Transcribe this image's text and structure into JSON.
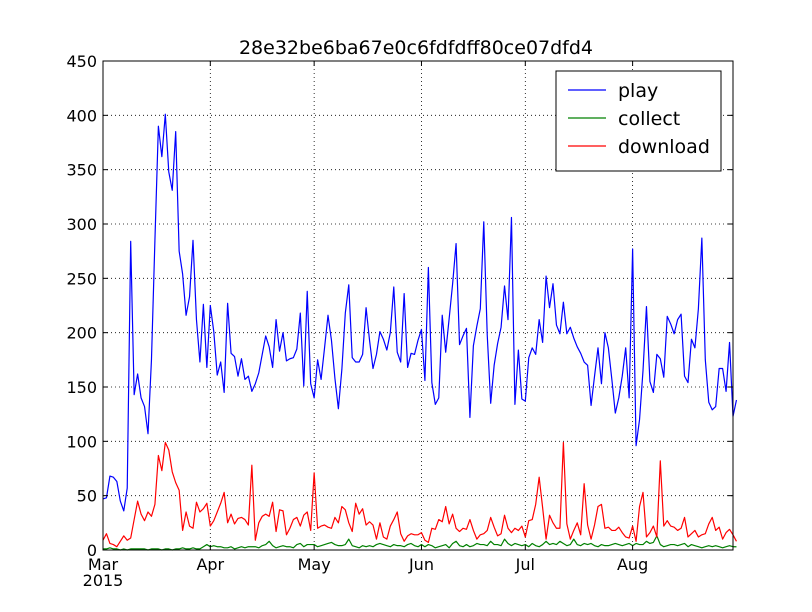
{
  "chart_data": {
    "type": "line",
    "title": "28e32be6ba67e0c6fdfdff80ce07dfd4",
    "xlabel": "",
    "ylabel": "",
    "x_start": "2015-03-01",
    "x_end": "2015-08-30",
    "xticks": [
      {
        "date": "2015-03-01",
        "label": "Mar",
        "sublabel": "2015"
      },
      {
        "date": "2015-04-01",
        "label": "Apr",
        "sublabel": ""
      },
      {
        "date": "2015-05-01",
        "label": "May",
        "sublabel": ""
      },
      {
        "date": "2015-06-01",
        "label": "Jun",
        "sublabel": ""
      },
      {
        "date": "2015-07-01",
        "label": "Jul",
        "sublabel": ""
      },
      {
        "date": "2015-08-01",
        "label": "Aug",
        "sublabel": ""
      }
    ],
    "ylim": [
      0,
      450
    ],
    "yticks": [
      0,
      50,
      100,
      150,
      200,
      250,
      300,
      350,
      400,
      450
    ],
    "grid": true,
    "legend_position": "upper-right",
    "series": [
      {
        "name": "play",
        "color": "#0000ff",
        "values": [
          47,
          48,
          68,
          67,
          63,
          45,
          36,
          57,
          284,
          143,
          162,
          140,
          132,
          107,
          175,
          285,
          390,
          362,
          401,
          348,
          331,
          385,
          275,
          254,
          216,
          233,
          285,
          212,
          173,
          226,
          168,
          225,
          201,
          161,
          173,
          145,
          227,
          181,
          178,
          160,
          176,
          157,
          160,
          146,
          153,
          163,
          180,
          197,
          187,
          168,
          212,
          183,
          200,
          174,
          176,
          177,
          185,
          218,
          151,
          238,
          153,
          140,
          175,
          157,
          186,
          216,
          193,
          158,
          130,
          166,
          218,
          244,
          177,
          173,
          173,
          180,
          223,
          193,
          167,
          180,
          201,
          194,
          184,
          200,
          242,
          182,
          173,
          236,
          168,
          181,
          180,
          193,
          203,
          156,
          260,
          154,
          134,
          140,
          216,
          182,
          213,
          245,
          282,
          189,
          197,
          204,
          122,
          188,
          206,
          222,
          302,
          198,
          135,
          170,
          190,
          205,
          243,
          212,
          306,
          134,
          184,
          139,
          137,
          177,
          186,
          180,
          212,
          191,
          252,
          223,
          245,
          207,
          199,
          228,
          199,
          205,
          195,
          187,
          181,
          173,
          170,
          133,
          160,
          186,
          153,
          200,
          186,
          157,
          126,
          140,
          160,
          186,
          140,
          277,
          96,
          120,
          165,
          224,
          155,
          145,
          180,
          176,
          159,
          215,
          208,
          199,
          212,
          217,
          160,
          154,
          194,
          186,
          222,
          287,
          175,
          136,
          129,
          132,
          167,
          167,
          146,
          191,
          123,
          138
        ]
      },
      {
        "name": "collect",
        "color": "#008000",
        "values": [
          1,
          1,
          2,
          1,
          1,
          0,
          1,
          0,
          1,
          1,
          1,
          1,
          1,
          0,
          1,
          1,
          1,
          0,
          1,
          1,
          0,
          1,
          1,
          2,
          1,
          1,
          2,
          1,
          1,
          3,
          5,
          3,
          4,
          3,
          3,
          2,
          2,
          3,
          1,
          2,
          3,
          2,
          3,
          3,
          3,
          2,
          4,
          5,
          8,
          4,
          2,
          3,
          4,
          3,
          3,
          2,
          5,
          6,
          3,
          5,
          5,
          5,
          3,
          4,
          5,
          6,
          7,
          5,
          4,
          4,
          5,
          10,
          4,
          3,
          2,
          4,
          3,
          4,
          3,
          5,
          6,
          5,
          4,
          3,
          5,
          4,
          4,
          3,
          5,
          6,
          4,
          3,
          5,
          3,
          5,
          4,
          2,
          3,
          4,
          5,
          2,
          6,
          8,
          4,
          3,
          5,
          3,
          4,
          6,
          5,
          5,
          4,
          8,
          5,
          5,
          4,
          10,
          6,
          4,
          6,
          5,
          4,
          5,
          3,
          6,
          4,
          3,
          5,
          8,
          5,
          6,
          5,
          8,
          6,
          4,
          5,
          10,
          5,
          4,
          6,
          5,
          6,
          4,
          3,
          5,
          4,
          4,
          5,
          6,
          5,
          4,
          5,
          6,
          4,
          6,
          5,
          5,
          8,
          6,
          7,
          13,
          5,
          3,
          4,
          5,
          5,
          4,
          5,
          6,
          3,
          5,
          4,
          3,
          2,
          3,
          4,
          3,
          4,
          3,
          2,
          3,
          4,
          3,
          3
        ]
      },
      {
        "name": "download",
        "color": "#ff0000",
        "values": [
          9,
          15,
          6,
          5,
          3,
          8,
          13,
          9,
          11,
          28,
          45,
          33,
          27,
          35,
          31,
          42,
          87,
          73,
          99,
          92,
          72,
          62,
          55,
          18,
          35,
          22,
          20,
          44,
          35,
          38,
          43,
          22,
          27,
          35,
          43,
          53,
          25,
          33,
          24,
          29,
          30,
          28,
          23,
          78,
          9,
          25,
          31,
          33,
          31,
          44,
          17,
          37,
          36,
          14,
          20,
          28,
          30,
          22,
          32,
          35,
          18,
          71,
          20,
          22,
          23,
          21,
          20,
          30,
          25,
          40,
          37,
          25,
          17,
          43,
          33,
          38,
          23,
          26,
          23,
          10,
          25,
          12,
          10,
          22,
          28,
          35,
          15,
          8,
          13,
          15,
          14,
          14,
          16,
          9,
          7,
          20,
          19,
          28,
          26,
          40,
          24,
          33,
          20,
          17,
          20,
          19,
          28,
          18,
          10,
          14,
          15,
          18,
          30,
          21,
          13,
          15,
          32,
          20,
          16,
          20,
          18,
          22,
          12,
          27,
          28,
          42,
          67,
          39,
          10,
          32,
          25,
          20,
          20,
          99,
          24,
          10,
          18,
          25,
          14,
          61,
          23,
          10,
          23,
          40,
          42,
          20,
          21,
          18,
          18,
          21,
          16,
          12,
          11,
          22,
          8,
          40,
          53,
          12,
          16,
          22,
          12,
          82,
          22,
          27,
          22,
          21,
          18,
          20,
          30,
          12,
          15,
          18,
          12,
          14,
          15,
          24,
          30,
          18,
          21,
          10,
          16,
          19,
          14,
          8
        ]
      }
    ]
  }
}
